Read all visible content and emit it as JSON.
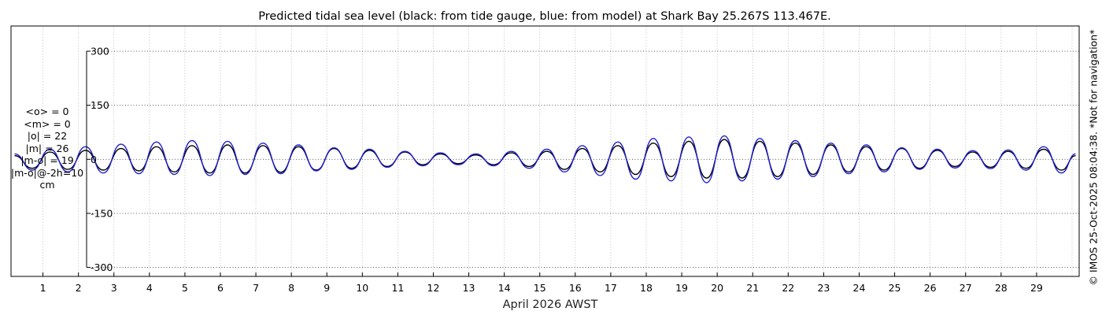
{
  "chart_data": {
    "type": "line",
    "title": "Predicted tidal sea level (black: from tide gauge, blue: from model) at Shark Bay 25.267S 113.467E.",
    "xlabel": "April 2026 AWST",
    "ylabel": "",
    "ylim": [
      -325,
      370
    ],
    "xlim": [
      0.1,
      30.2
    ],
    "yticks": [
      300,
      150,
      0,
      -150,
      -300
    ],
    "ytick_labels": [
      "300",
      "150",
      "0",
      "-150",
      "-300"
    ],
    "xticks": [
      1,
      2,
      3,
      4,
      5,
      6,
      7,
      8,
      9,
      10,
      11,
      12,
      13,
      14,
      15,
      16,
      17,
      18,
      19,
      20,
      21,
      22,
      23,
      24,
      25,
      26,
      27,
      28,
      29
    ],
    "xtick_labels": [
      "1",
      "2",
      "3",
      "4",
      "5",
      "6",
      "7",
      "8",
      "9",
      "10",
      "11",
      "12",
      "13",
      "14",
      "15",
      "16",
      "17",
      "18",
      "19",
      "20",
      "21",
      "22",
      "23",
      "24",
      "25",
      "26",
      "27",
      "28",
      "29"
    ],
    "grid": true,
    "series": [
      {
        "name": "tide gauge",
        "color": "#000000",
        "x": [
          0.2,
          0.7,
          1.2,
          1.7,
          2.2,
          2.7,
          3.2,
          3.7,
          4.2,
          4.7,
          5.2,
          5.7,
          6.2,
          6.7,
          7.2,
          7.7,
          8.2,
          8.7,
          9.2,
          9.7,
          10.2,
          10.7,
          11.2,
          11.7,
          12.2,
          12.7,
          13.2,
          13.7,
          14.2,
          14.7,
          15.2,
          15.7,
          16.2,
          16.7,
          17.2,
          17.7,
          18.2,
          18.7,
          19.2,
          19.7,
          20.2,
          20.7,
          21.2,
          21.7,
          22.2,
          22.7,
          23.2,
          23.7,
          24.2,
          24.7,
          25.2,
          25.7,
          26.2,
          26.7,
          27.2,
          27.7,
          28.2,
          28.7,
          29.2,
          29.7,
          30.1
        ],
        "values": [
          10,
          -25,
          20,
          -28,
          25,
          -30,
          30,
          -32,
          35,
          -35,
          38,
          -38,
          40,
          -38,
          38,
          -36,
          35,
          -30,
          30,
          -25,
          25,
          -20,
          20,
          -15,
          15,
          -12,
          12,
          -15,
          18,
          -20,
          22,
          -28,
          30,
          -35,
          38,
          -42,
          45,
          -48,
          50,
          -52,
          55,
          -52,
          50,
          -48,
          45,
          -42,
          40,
          -35,
          35,
          -30,
          30,
          -25,
          25,
          -20,
          20,
          -22,
          22,
          -25,
          28,
          -30,
          10
        ]
      },
      {
        "name": "model",
        "color": "#1f1fd0",
        "x": [
          0.2,
          0.7,
          1.2,
          1.7,
          2.2,
          2.7,
          3.2,
          3.7,
          4.2,
          4.7,
          5.2,
          5.7,
          6.2,
          6.7,
          7.2,
          7.7,
          8.2,
          8.7,
          9.2,
          9.7,
          10.2,
          10.7,
          11.2,
          11.7,
          12.2,
          12.7,
          13.2,
          13.7,
          14.2,
          14.7,
          15.2,
          15.7,
          16.2,
          16.7,
          17.2,
          17.7,
          18.2,
          18.7,
          19.2,
          19.7,
          20.2,
          20.7,
          21.2,
          21.7,
          22.2,
          22.7,
          23.2,
          23.7,
          24.2,
          24.7,
          25.2,
          25.7,
          26.2,
          26.7,
          27.2,
          27.7,
          28.2,
          28.7,
          29.2,
          29.7,
          30.1
        ],
        "values": [
          15,
          -30,
          28,
          -35,
          35,
          -38,
          42,
          -40,
          48,
          -42,
          52,
          -45,
          50,
          -42,
          45,
          -40,
          40,
          -32,
          32,
          -28,
          28,
          -22,
          22,
          -18,
          18,
          -15,
          15,
          -18,
          22,
          -25,
          28,
          -35,
          38,
          -45,
          48,
          -55,
          58,
          -60,
          62,
          -65,
          65,
          -60,
          58,
          -55,
          52,
          -48,
          45,
          -40,
          40,
          -35,
          32,
          -28,
          28,
          -24,
          24,
          -26,
          26,
          -30,
          35,
          -38,
          15
        ]
      }
    ]
  },
  "stats": {
    "mean_o": "<o> = 0",
    "mean_m": "<m> = 0",
    "abs_o": "|o| = 22",
    "abs_m": "|m| = 26",
    "abs_diff": "|m-o| = 19",
    "abs_diff_lag": "|m-o|@-2h=10",
    "unit": "cm"
  },
  "credit": "© IMOS 25-Oct-2025 08:04:38. *Not for navigation*"
}
